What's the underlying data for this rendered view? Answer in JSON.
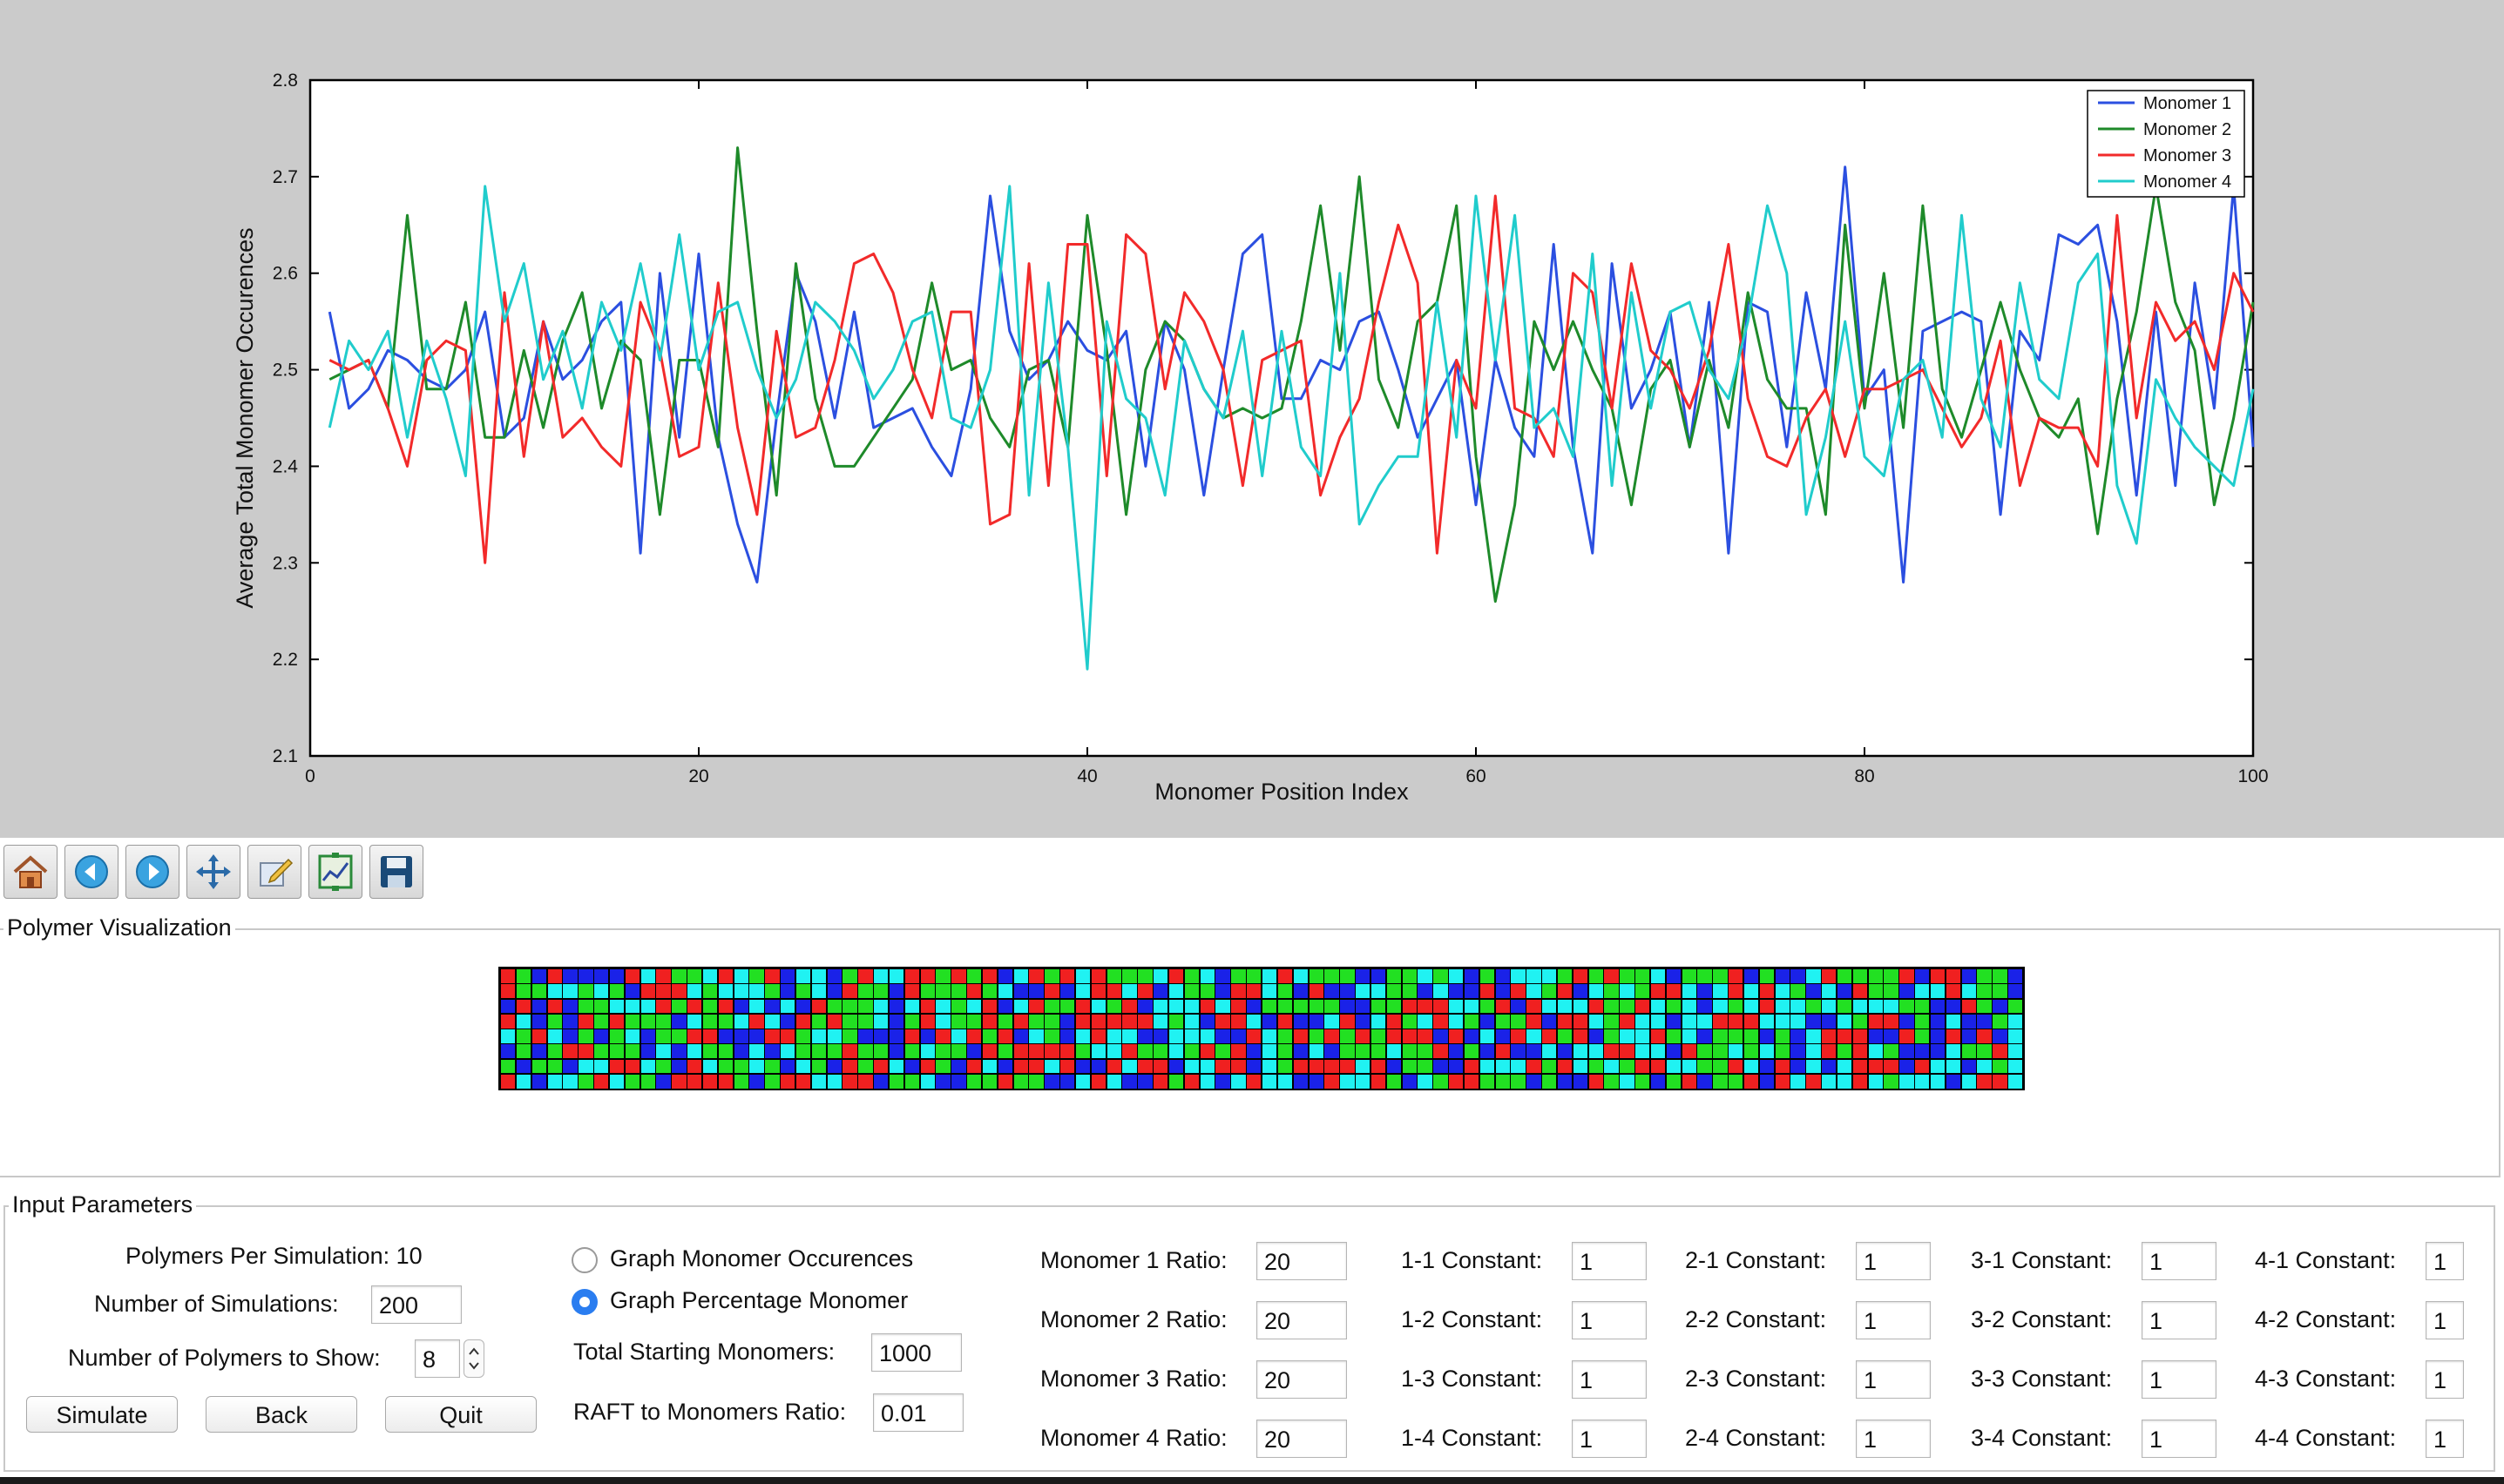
{
  "chart_data": {
    "type": "line",
    "xlabel": "Monomer Position Index",
    "ylabel": "Average Total Monomer Occurences",
    "xlim": [
      0,
      100
    ],
    "ylim": [
      2.1,
      2.8
    ],
    "xticks": [
      "0",
      "20",
      "40",
      "60",
      "80",
      "100"
    ],
    "yticks": [
      "2.1",
      "2.2",
      "2.3",
      "2.4",
      "2.5",
      "2.6",
      "2.7",
      "2.8"
    ],
    "grid": false,
    "legend_position": "top-right",
    "x": [
      1,
      2,
      3,
      4,
      5,
      6,
      7,
      8,
      9,
      10,
      11,
      12,
      13,
      14,
      15,
      16,
      17,
      18,
      19,
      20,
      21,
      22,
      23,
      24,
      25,
      26,
      27,
      28,
      29,
      30,
      31,
      32,
      33,
      34,
      35,
      36,
      37,
      38,
      39,
      40,
      41,
      42,
      43,
      44,
      45,
      46,
      47,
      48,
      49,
      50,
      51,
      52,
      53,
      54,
      55,
      56,
      57,
      58,
      59,
      60,
      61,
      62,
      63,
      64,
      65,
      66,
      67,
      68,
      69,
      70,
      71,
      72,
      73,
      74,
      75,
      76,
      77,
      78,
      79,
      80,
      81,
      82,
      83,
      84,
      85,
      86,
      87,
      88,
      89,
      90,
      91,
      92,
      93,
      94,
      95,
      96,
      97,
      98,
      99,
      100
    ],
    "series": [
      {
        "name": "Monomer 1",
        "color": "#2b4fe0",
        "values": [
          2.56,
          2.46,
          2.48,
          2.52,
          2.51,
          2.49,
          2.48,
          2.5,
          2.56,
          2.43,
          2.45,
          2.55,
          2.49,
          2.51,
          2.55,
          2.57,
          2.31,
          2.6,
          2.43,
          2.62,
          2.43,
          2.34,
          2.28,
          2.45,
          2.6,
          2.55,
          2.45,
          2.56,
          2.44,
          2.45,
          2.46,
          2.42,
          2.39,
          2.48,
          2.68,
          2.54,
          2.49,
          2.51,
          2.55,
          2.52,
          2.51,
          2.54,
          2.4,
          2.55,
          2.5,
          2.37,
          2.5,
          2.62,
          2.64,
          2.47,
          2.47,
          2.51,
          2.5,
          2.55,
          2.56,
          2.5,
          2.43,
          2.47,
          2.51,
          2.36,
          2.51,
          2.44,
          2.41,
          2.63,
          2.42,
          2.31,
          2.61,
          2.46,
          2.5,
          2.56,
          2.42,
          2.57,
          2.31,
          2.57,
          2.56,
          2.42,
          2.58,
          2.48,
          2.71,
          2.47,
          2.5,
          2.28,
          2.54,
          2.55,
          2.56,
          2.55,
          2.35,
          2.54,
          2.51,
          2.64,
          2.63,
          2.65,
          2.55,
          2.37,
          2.56,
          2.38,
          2.59,
          2.46,
          2.69,
          2.42
        ]
      },
      {
        "name": "Monomer 2",
        "color": "#1e8a2a",
        "values": [
          2.49,
          2.5,
          2.51,
          2.46,
          2.66,
          2.48,
          2.48,
          2.57,
          2.43,
          2.43,
          2.52,
          2.44,
          2.53,
          2.58,
          2.46,
          2.53,
          2.51,
          2.35,
          2.51,
          2.51,
          2.42,
          2.73,
          2.54,
          2.37,
          2.61,
          2.47,
          2.4,
          2.4,
          2.43,
          2.46,
          2.49,
          2.59,
          2.5,
          2.51,
          2.45,
          2.42,
          2.5,
          2.51,
          2.42,
          2.66,
          2.52,
          2.35,
          2.5,
          2.55,
          2.53,
          2.48,
          2.45,
          2.46,
          2.45,
          2.46,
          2.55,
          2.67,
          2.52,
          2.7,
          2.49,
          2.44,
          2.55,
          2.57,
          2.67,
          2.41,
          2.26,
          2.36,
          2.55,
          2.5,
          2.55,
          2.5,
          2.46,
          2.36,
          2.48,
          2.51,
          2.42,
          2.51,
          2.44,
          2.58,
          2.49,
          2.46,
          2.46,
          2.35,
          2.65,
          2.46,
          2.6,
          2.44,
          2.67,
          2.48,
          2.43,
          2.5,
          2.57,
          2.5,
          2.45,
          2.43,
          2.47,
          2.33,
          2.47,
          2.56,
          2.69,
          2.57,
          2.52,
          2.36,
          2.45,
          2.57
        ]
      },
      {
        "name": "Monomer 3",
        "color": "#f22a2a",
        "values": [
          2.51,
          2.5,
          2.51,
          2.46,
          2.4,
          2.51,
          2.53,
          2.52,
          2.3,
          2.58,
          2.41,
          2.55,
          2.43,
          2.45,
          2.42,
          2.4,
          2.57,
          2.52,
          2.41,
          2.42,
          2.59,
          2.44,
          2.35,
          2.54,
          2.43,
          2.44,
          2.51,
          2.61,
          2.62,
          2.58,
          2.5,
          2.45,
          2.56,
          2.56,
          2.34,
          2.35,
          2.61,
          2.38,
          2.63,
          2.63,
          2.39,
          2.64,
          2.62,
          2.48,
          2.58,
          2.55,
          2.5,
          2.38,
          2.51,
          2.52,
          2.53,
          2.37,
          2.43,
          2.47,
          2.57,
          2.65,
          2.59,
          2.31,
          2.51,
          2.46,
          2.68,
          2.46,
          2.45,
          2.41,
          2.6,
          2.58,
          2.46,
          2.61,
          2.52,
          2.5,
          2.46,
          2.52,
          2.63,
          2.47,
          2.41,
          2.4,
          2.45,
          2.48,
          2.41,
          2.48,
          2.48,
          2.49,
          2.5,
          2.46,
          2.42,
          2.45,
          2.53,
          2.38,
          2.45,
          2.44,
          2.44,
          2.4,
          2.66,
          2.45,
          2.57,
          2.53,
          2.55,
          2.5,
          2.6,
          2.56
        ]
      },
      {
        "name": "Monomer 4",
        "color": "#20cccc",
        "values": [
          2.44,
          2.53,
          2.5,
          2.54,
          2.43,
          2.53,
          2.47,
          2.39,
          2.69,
          2.55,
          2.61,
          2.49,
          2.54,
          2.46,
          2.57,
          2.52,
          2.61,
          2.51,
          2.64,
          2.5,
          2.56,
          2.57,
          2.5,
          2.45,
          2.49,
          2.57,
          2.55,
          2.52,
          2.47,
          2.5,
          2.55,
          2.56,
          2.45,
          2.44,
          2.5,
          2.69,
          2.37,
          2.59,
          2.42,
          2.19,
          2.55,
          2.47,
          2.45,
          2.37,
          2.53,
          2.48,
          2.45,
          2.54,
          2.39,
          2.54,
          2.42,
          2.39,
          2.6,
          2.34,
          2.38,
          2.41,
          2.41,
          2.57,
          2.43,
          2.68,
          2.51,
          2.66,
          2.44,
          2.46,
          2.41,
          2.62,
          2.38,
          2.58,
          2.46,
          2.56,
          2.57,
          2.5,
          2.47,
          2.55,
          2.67,
          2.6,
          2.35,
          2.43,
          2.55,
          2.41,
          2.39,
          2.49,
          2.51,
          2.43,
          2.66,
          2.47,
          2.42,
          2.59,
          2.49,
          2.47,
          2.59,
          2.62,
          2.38,
          2.32,
          2.49,
          2.45,
          2.42,
          2.4,
          2.38,
          2.48
        ]
      }
    ]
  },
  "toolbar": {
    "items": [
      "home-icon",
      "back-icon",
      "forward-icon",
      "pan-icon",
      "edit-axis-icon",
      "configure-subplots-icon",
      "save-icon"
    ]
  },
  "polymer_visualization": {
    "label": "Polymer Visualization",
    "colors": {
      "1": "#1a22e8",
      "2": "#22e022",
      "3": "#f02020",
      "4": "#20f2f2"
    },
    "rows": [
      "32131111343224342314412344332323143234322243241224342221122424121444232322412223121143222231331221",
      "32244242133342444212413221322232411314334314221334213114422141131342314242334143434214132214434221",
      "13131224443232314141322241434243143223423144434312222211223334423134443223424142434424244422113212",
      "34121323222142243413232241234223232213333342413341311431432434212231334234414433344411423312141124",
      "42341212412233111332442111313432314214344114441134232323233313141343231244324122212143331132131314",
      "12123322214142214142223221242213233332443224232314214122242231213114144334413224242143234211142234",
      "21221443342134224214213234132134133431134331443314233334312211344432342423344223413141433313441424",
      "34144234221333321233443312241122322114341132341434411344321423322212113242123122313434434244414334"
    ]
  },
  "inputs": {
    "label": "Input Parameters",
    "polymers_per_sim": "Polymers Per Simulation: 10",
    "num_sims_label": "Number of Simulations:",
    "num_sims_value": "200",
    "num_show_label": "Number of Polymers to Show:",
    "num_show_value": "8",
    "simulate": "Simulate",
    "back": "Back",
    "quit": "Quit",
    "radio_occurences": "Graph Monomer Occurences",
    "radio_percentage": "Graph Percentage Monomer",
    "total_starting_label": "Total Starting Monomers:",
    "total_starting_value": "1000",
    "raft_label": "RAFT to Monomers Ratio:",
    "raft_value": "0.01",
    "ratios": [
      {
        "label": "Monomer 1 Ratio:",
        "value": "20"
      },
      {
        "label": "Monomer 2 Ratio:",
        "value": "20"
      },
      {
        "label": "Monomer 3 Ratio:",
        "value": "20"
      },
      {
        "label": "Monomer 4 Ratio:",
        "value": "20"
      }
    ],
    "constants": [
      [
        {
          "label": "1-1 Constant:",
          "value": "1"
        },
        {
          "label": "1-2 Constant:",
          "value": "1"
        },
        {
          "label": "1-3 Constant:",
          "value": "1"
        },
        {
          "label": "1-4 Constant:",
          "value": "1"
        }
      ],
      [
        {
          "label": "2-1 Constant:",
          "value": "1"
        },
        {
          "label": "2-2 Constant:",
          "value": "1"
        },
        {
          "label": "2-3 Constant:",
          "value": "1"
        },
        {
          "label": "2-4 Constant:",
          "value": "1"
        }
      ],
      [
        {
          "label": "3-1 Constant:",
          "value": "1"
        },
        {
          "label": "3-2 Constant:",
          "value": "1"
        },
        {
          "label": "3-3 Constant:",
          "value": "1"
        },
        {
          "label": "3-4 Constant:",
          "value": "1"
        }
      ],
      [
        {
          "label": "4-1 Constant:",
          "value": "1"
        },
        {
          "label": "4-2 Constant:",
          "value": "1"
        },
        {
          "label": "4-3 Constant:",
          "value": "1"
        },
        {
          "label": "4-4 Constant:",
          "value": "1"
        }
      ]
    ]
  }
}
